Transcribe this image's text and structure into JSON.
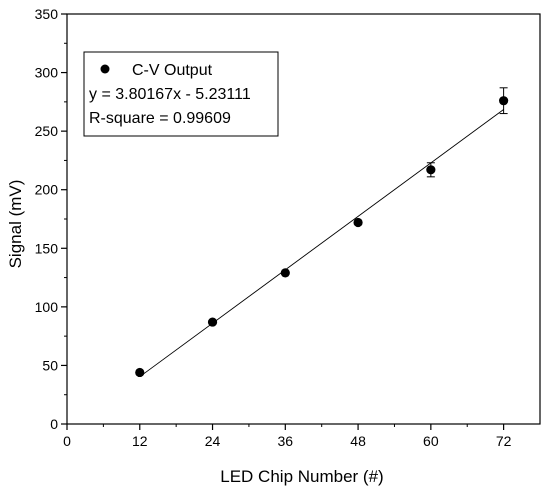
{
  "chart_data": {
    "type": "scatter",
    "xlabel": "LED Chip Number (#)",
    "ylabel": "Signal (mV)",
    "xlim": [
      0,
      78
    ],
    "ylim": [
      0,
      350
    ],
    "xticks": [
      0,
      12,
      24,
      36,
      48,
      60,
      72
    ],
    "yticks": [
      0,
      50,
      100,
      150,
      200,
      250,
      300,
      350
    ],
    "grid": false,
    "legend_position": "top-left",
    "series": [
      {
        "name": "C-V Output",
        "marker": "filled-circle",
        "color": "#000000",
        "x": [
          12,
          24,
          36,
          48,
          60,
          72
        ],
        "y": [
          44,
          87,
          129,
          172,
          217,
          276
        ],
        "error": [
          0,
          0,
          0,
          0,
          6,
          11
        ]
      }
    ],
    "fit": {
      "slope": 3.80167,
      "intercept": -5.23111,
      "x_range": [
        12,
        72
      ],
      "equation_label": "y = 3.80167x - 5.23111",
      "r_square_label": "R-square = 0.99609"
    }
  }
}
